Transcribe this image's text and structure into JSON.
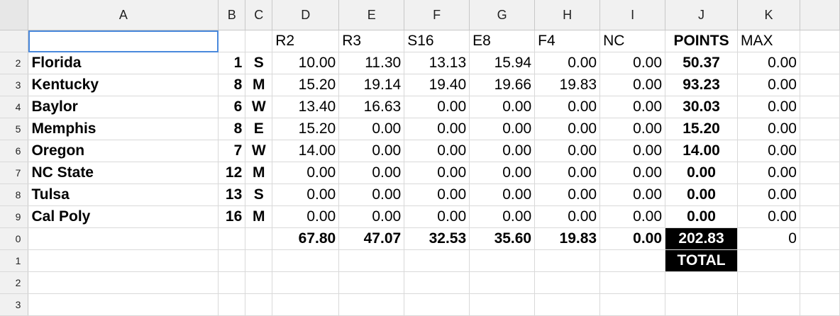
{
  "columns": [
    "A",
    "B",
    "C",
    "D",
    "E",
    "F",
    "G",
    "H",
    "I",
    "J",
    "K"
  ],
  "row_numbers": [
    "",
    "2",
    "3",
    "4",
    "5",
    "6",
    "7",
    "8",
    "9",
    "0",
    "1",
    "2",
    "3"
  ],
  "header_row": {
    "a": "",
    "b": "",
    "c": "",
    "d": "R2",
    "e": "R3",
    "f": "S16",
    "g": "E8",
    "h": "F4",
    "i": "NC",
    "j": "POINTS",
    "k": "MAX"
  },
  "teams": [
    {
      "name": "Florida",
      "seed": "1",
      "region": "S",
      "r2": "10.00",
      "r3": "11.30",
      "s16": "13.13",
      "e8": "15.94",
      "f4": "0.00",
      "nc": "0.00",
      "points": "50.37",
      "max": "0.00"
    },
    {
      "name": "Kentucky",
      "seed": "8",
      "region": "M",
      "r2": "15.20",
      "r3": "19.14",
      "s16": "19.40",
      "e8": "19.66",
      "f4": "19.83",
      "nc": "0.00",
      "points": "93.23",
      "max": "0.00"
    },
    {
      "name": "Baylor",
      "seed": "6",
      "region": "W",
      "r2": "13.40",
      "r3": "16.63",
      "s16": "0.00",
      "e8": "0.00",
      "f4": "0.00",
      "nc": "0.00",
      "points": "30.03",
      "max": "0.00"
    },
    {
      "name": "Memphis",
      "seed": "8",
      "region": "E",
      "r2": "15.20",
      "r3": "0.00",
      "s16": "0.00",
      "e8": "0.00",
      "f4": "0.00",
      "nc": "0.00",
      "points": "15.20",
      "max": "0.00"
    },
    {
      "name": "Oregon",
      "seed": "7",
      "region": "W",
      "r2": "14.00",
      "r3": "0.00",
      "s16": "0.00",
      "e8": "0.00",
      "f4": "0.00",
      "nc": "0.00",
      "points": "14.00",
      "max": "0.00"
    },
    {
      "name": "NC State",
      "seed": "12",
      "region": "M",
      "r2": "0.00",
      "r3": "0.00",
      "s16": "0.00",
      "e8": "0.00",
      "f4": "0.00",
      "nc": "0.00",
      "points": "0.00",
      "max": "0.00"
    },
    {
      "name": "Tulsa",
      "seed": "13",
      "region": "S",
      "r2": "0.00",
      "r3": "0.00",
      "s16": "0.00",
      "e8": "0.00",
      "f4": "0.00",
      "nc": "0.00",
      "points": "0.00",
      "max": "0.00"
    },
    {
      "name": "Cal Poly",
      "seed": "16",
      "region": "M",
      "r2": "0.00",
      "r3": "0.00",
      "s16": "0.00",
      "e8": "0.00",
      "f4": "0.00",
      "nc": "0.00",
      "points": "0.00",
      "max": "0.00"
    }
  ],
  "totals": {
    "r2": "67.80",
    "r3": "47.07",
    "s16": "32.53",
    "e8": "35.60",
    "f4": "19.83",
    "nc": "0.00",
    "points": "202.83",
    "max": "0"
  },
  "total_label": "TOTAL",
  "colors": {
    "selection": "#4a89dc",
    "header_bg": "#f1f1f1",
    "highlight_bg": "#000000"
  }
}
